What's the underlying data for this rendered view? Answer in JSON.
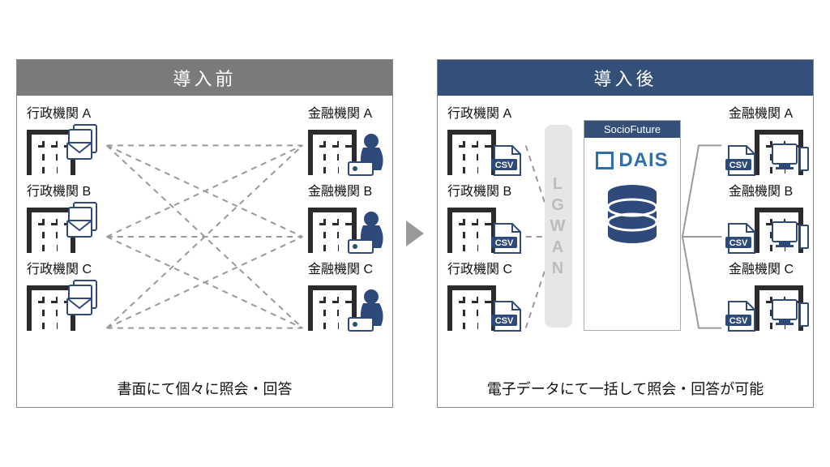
{
  "before": {
    "header": "導入前",
    "header_bg": "#7a7a7a",
    "footer": "書面にて個々に照会・回答",
    "left_entities": [
      "行政機関 A",
      "行政機関 B",
      "行政機関 C"
    ],
    "right_entities": [
      "金融機関 A",
      "金融機関 B",
      "金融機関 C"
    ],
    "line_color": "#9a9a9a",
    "line_dash": "7 6",
    "building_color": "#2b2b2b",
    "accent_color": "#2e4a7a"
  },
  "after": {
    "header": "導入後",
    "header_bg": "#344f78",
    "footer": "電子データにて一括して照会・回答が可能",
    "left_entities": [
      "行政機関 A",
      "行政機関 B",
      "行政機関 C"
    ],
    "right_entities": [
      "金融機関 A",
      "金融機関 B",
      "金融機関 C"
    ],
    "csv_label": "CSV",
    "lgwan_label": "LGWAN",
    "lgwan_bg": "#e6e6e6",
    "lgwan_text": "#bcbcbc",
    "dais_tag": "SocioFuture",
    "dais_tag_bg": "#344f78",
    "dais_name": "DAIS",
    "dais_blue": "#2f6fb0",
    "db_color": "#2e4a7a",
    "line_color": "#9a9a9a",
    "line_dash_left": "7 6",
    "building_color": "#2b2b2b"
  },
  "arrow_color": "#9a9a9a"
}
